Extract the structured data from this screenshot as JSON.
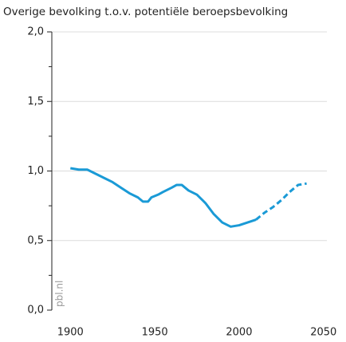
{
  "chart_data": {
    "type": "line",
    "title": "Overige bevolking t.o.v. potentiële beroepsbevolking",
    "watermark": "pbl.nl",
    "x": [
      1900,
      1905,
      1910,
      1915,
      1920,
      1925,
      1930,
      1935,
      1940,
      1943,
      1946,
      1948,
      1952,
      1955,
      1960,
      1963,
      1966,
      1970,
      1975,
      1980,
      1985,
      1990,
      1995,
      2000,
      2005,
      2010,
      2015,
      2020,
      2025,
      2030,
      2035,
      2040
    ],
    "series": [
      {
        "color": "#1a9ad6",
        "dashed": false,
        "values": [
          1.02,
          1.01,
          1.01,
          0.98,
          0.95,
          0.92,
          0.88,
          0.84,
          0.81,
          0.78,
          0.78,
          0.81,
          0.83,
          0.85,
          0.88,
          0.9,
          0.9,
          0.86,
          0.83,
          0.77,
          0.69,
          0.63,
          0.6,
          0.61,
          0.63,
          0.65,
          null,
          null,
          null,
          null,
          null,
          null
        ]
      },
      {
        "color": "#1a9ad6",
        "dashed": true,
        "values": [
          null,
          null,
          null,
          null,
          null,
          null,
          null,
          null,
          null,
          null,
          null,
          null,
          null,
          null,
          null,
          null,
          null,
          null,
          null,
          null,
          null,
          null,
          null,
          null,
          null,
          0.65,
          0.7,
          0.74,
          0.79,
          0.85,
          0.9,
          0.91
        ]
      }
    ],
    "xlim": [
      1889,
      2052
    ],
    "xticks": [
      1900,
      1950,
      2000,
      2050
    ],
    "ylim": [
      0,
      2
    ],
    "yticks": [
      {
        "value": 0,
        "label": "0,0"
      },
      {
        "value": 0.5,
        "label": "0,5"
      },
      {
        "value": 1,
        "label": "1,0"
      },
      {
        "value": 1.5,
        "label": "1,5"
      },
      {
        "value": 2,
        "label": "2,0"
      }
    ],
    "yminor_ticks": [
      0.25,
      0.75,
      1.25,
      1.75
    ],
    "grid": true
  }
}
